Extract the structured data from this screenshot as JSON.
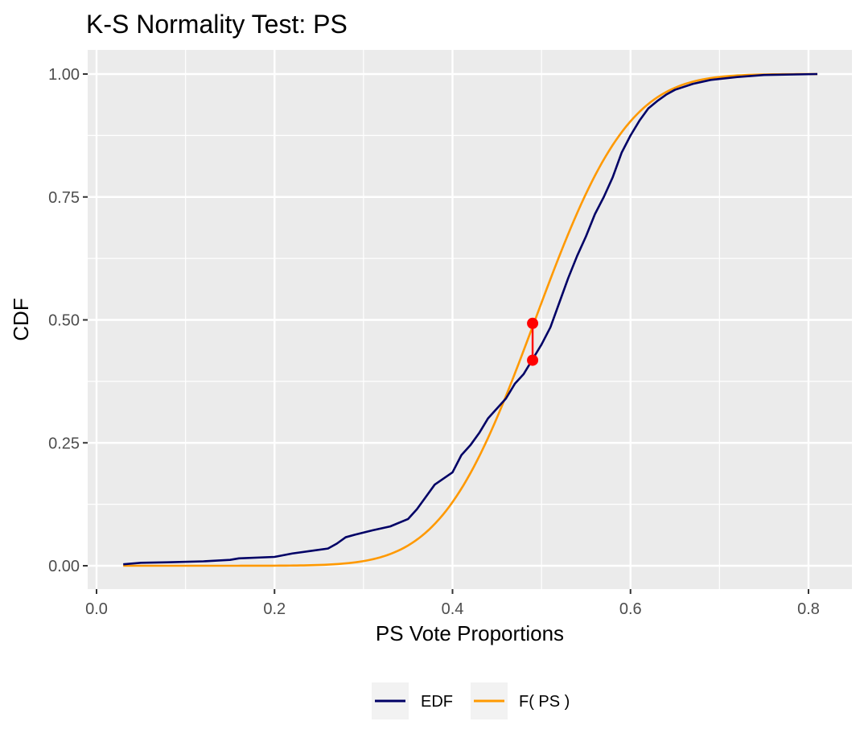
{
  "chart_data": {
    "type": "line",
    "title": "K-S Normality Test:  PS",
    "xlabel": "PS  Vote Proportions",
    "ylabel": "CDF",
    "xlim": [
      0.0,
      0.8
    ],
    "ylim": [
      0.0,
      1.0
    ],
    "x_ticks": [
      "0.0",
      "0.2",
      "0.4",
      "0.6",
      "0.8"
    ],
    "y_ticks": [
      "0.00",
      "0.25",
      "0.50",
      "0.75",
      "1.00"
    ],
    "x_tick_values": [
      0.0,
      0.2,
      0.4,
      0.6,
      0.8
    ],
    "y_tick_values": [
      0.0,
      0.25,
      0.5,
      0.75,
      1.0
    ],
    "grid": true,
    "legend_position": "bottom",
    "series": [
      {
        "name": "EDF",
        "color": "#000066",
        "x": [
          0.03,
          0.05,
          0.08,
          0.12,
          0.15,
          0.16,
          0.2,
          0.22,
          0.24,
          0.26,
          0.27,
          0.28,
          0.29,
          0.31,
          0.33,
          0.35,
          0.36,
          0.37,
          0.38,
          0.4,
          0.41,
          0.42,
          0.43,
          0.44,
          0.45,
          0.46,
          0.47,
          0.48,
          0.49,
          0.5,
          0.51,
          0.52,
          0.53,
          0.54,
          0.55,
          0.56,
          0.57,
          0.58,
          0.59,
          0.6,
          0.61,
          0.62,
          0.63,
          0.64,
          0.65,
          0.67,
          0.69,
          0.72,
          0.75,
          0.81
        ],
        "y": [
          0.003,
          0.006,
          0.007,
          0.009,
          0.012,
          0.015,
          0.018,
          0.025,
          0.03,
          0.035,
          0.045,
          0.058,
          0.063,
          0.072,
          0.08,
          0.095,
          0.115,
          0.14,
          0.165,
          0.19,
          0.225,
          0.245,
          0.27,
          0.3,
          0.32,
          0.34,
          0.37,
          0.39,
          0.42,
          0.45,
          0.485,
          0.535,
          0.585,
          0.63,
          0.67,
          0.715,
          0.75,
          0.79,
          0.84,
          0.875,
          0.905,
          0.93,
          0.945,
          0.958,
          0.968,
          0.98,
          0.988,
          0.994,
          0.998,
          1.0
        ]
      },
      {
        "name": "F( PS )",
        "color": "#ff9900",
        "distribution": "normal",
        "mean": 0.4928,
        "sd": 0.0822,
        "x_range": [
          0.03,
          0.81
        ]
      }
    ],
    "ks_statistic": {
      "x": 0.49,
      "y_edf": 0.418,
      "y_cdf": 0.493,
      "color": "#ff0000"
    }
  }
}
